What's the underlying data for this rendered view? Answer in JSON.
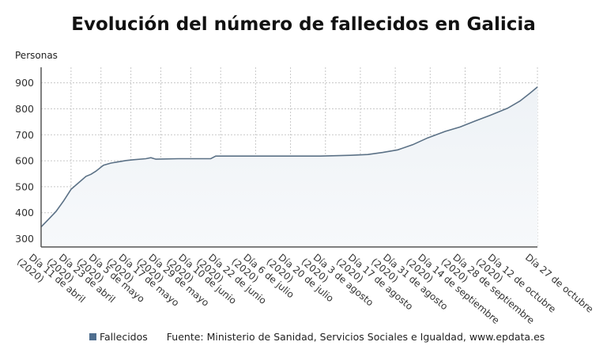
{
  "chart_data": {
    "type": "area",
    "title": "Evolución del número de fallecidos en Galicia",
    "ylabel": "Personas",
    "xlabel": "",
    "ylim": [
      268,
      960
    ],
    "yticks": [
      300,
      400,
      500,
      600,
      700,
      800,
      900
    ],
    "grid": true,
    "legend_placement": "bottom",
    "colors": {
      "line": "#5b7186",
      "fill_top": "#eef2f6",
      "fill_bottom": "#f7f9fb",
      "legend": "#4f6e8f",
      "grid": "#c8c8c8",
      "axis": "#555555"
    },
    "x_ticks": [
      {
        "date": "2020-04-11",
        "label": "Día 11 de abril",
        "sub": "(2020)"
      },
      {
        "date": "2020-04-23",
        "label": "Día 23 de abril",
        "sub": "(2020)"
      },
      {
        "date": "2020-05-05",
        "label": "Día 5 de mayo",
        "sub": "(2020)"
      },
      {
        "date": "2020-05-17",
        "label": "Día 17 de mayo",
        "sub": "(2020)"
      },
      {
        "date": "2020-05-29",
        "label": "Día 29 de mayo",
        "sub": "(2020)"
      },
      {
        "date": "2020-06-10",
        "label": "Día 10 de junio",
        "sub": "(2020)"
      },
      {
        "date": "2020-06-22",
        "label": "Día 22 de junio",
        "sub": "(2020)"
      },
      {
        "date": "2020-07-06",
        "label": "Día 6 de julio",
        "sub": "(2020)"
      },
      {
        "date": "2020-07-20",
        "label": "Día 20 de julio",
        "sub": "(2020)"
      },
      {
        "date": "2020-08-03",
        "label": "Día 3 de agosto",
        "sub": "(2020)"
      },
      {
        "date": "2020-08-17",
        "label": "Día 17 de agosto",
        "sub": "(2020)"
      },
      {
        "date": "2020-08-31",
        "label": "Día 31 de agosto",
        "sub": "(2020)"
      },
      {
        "date": "2020-09-14",
        "label": "Día 14 de septiembre",
        "sub": "(2020)"
      },
      {
        "date": "2020-09-28",
        "label": "Día 28 de septiembre",
        "sub": "(2020)"
      },
      {
        "date": "2020-10-12",
        "label": "Día 12 de octubre",
        "sub": "(2020)"
      },
      {
        "date": "2020-10-27",
        "label": "Día 27 de octubre",
        "sub": ""
      }
    ],
    "series": [
      {
        "name": "Fallecidos",
        "points": [
          [
            "2020-04-11",
            345
          ],
          [
            "2020-04-14",
            375
          ],
          [
            "2020-04-17",
            405
          ],
          [
            "2020-04-20",
            445
          ],
          [
            "2020-04-23",
            490
          ],
          [
            "2020-04-26",
            515
          ],
          [
            "2020-04-29",
            540
          ],
          [
            "2020-05-01",
            548
          ],
          [
            "2020-05-03",
            560
          ],
          [
            "2020-05-06",
            583
          ],
          [
            "2020-05-09",
            591
          ],
          [
            "2020-05-12",
            596
          ],
          [
            "2020-05-15",
            601
          ],
          [
            "2020-05-18",
            604
          ],
          [
            "2020-05-23",
            608
          ],
          [
            "2020-05-25",
            612
          ],
          [
            "2020-05-27",
            606
          ],
          [
            "2020-06-05",
            608
          ],
          [
            "2020-06-18",
            608
          ],
          [
            "2020-06-20",
            618
          ],
          [
            "2020-07-10",
            618
          ],
          [
            "2020-08-01",
            618
          ],
          [
            "2020-08-13",
            621
          ],
          [
            "2020-08-20",
            624
          ],
          [
            "2020-08-26",
            632
          ],
          [
            "2020-09-01",
            642
          ],
          [
            "2020-09-07",
            662
          ],
          [
            "2020-09-13",
            688
          ],
          [
            "2020-09-20",
            713
          ],
          [
            "2020-09-26",
            730
          ],
          [
            "2020-10-02",
            753
          ],
          [
            "2020-10-08",
            775
          ],
          [
            "2020-10-15",
            802
          ],
          [
            "2020-10-20",
            830
          ],
          [
            "2020-10-24",
            860
          ],
          [
            "2020-10-27",
            884
          ]
        ]
      }
    ]
  },
  "legend": {
    "series_label": "Fallecidos",
    "source": "Fuente: Ministerio de Sanidad, Servicios Sociales e Igualdad, www.epdata.es"
  }
}
